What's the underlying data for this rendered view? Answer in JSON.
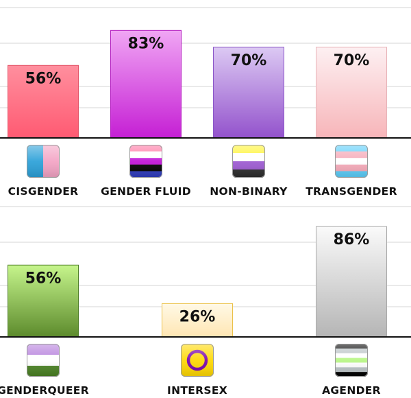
{
  "chart_data": [
    {
      "type": "bar",
      "categories": [
        "CISGENDER",
        "GENDER FLUID",
        "NON-BINARY",
        "TRANSGENDER"
      ],
      "values": [
        56,
        83,
        70,
        70
      ],
      "value_labels": [
        "56%",
        "83%",
        "70%",
        "70%"
      ],
      "ylim": [
        0,
        100
      ],
      "grid": true,
      "bar_colors": [
        [
          "#ff8f9e",
          "#ff5a72"
        ],
        [
          "#f0a6f4",
          "#c51fd4"
        ],
        [
          "#dcc9f3",
          "#9352cc"
        ],
        [
          "#fdf0f2",
          "#f7b5b9"
        ]
      ],
      "icons": [
        {
          "name": "cisgender-flag-icon",
          "stripes": "vertical",
          "colors": [
            "#2aa0d8",
            "#f3a3c4"
          ]
        },
        {
          "name": "gender-fluid-flag-icon",
          "stripes": "horizontal",
          "colors": [
            "#ff76a4",
            "#ffffff",
            "#c011d7",
            "#000000",
            "#2f3cbe"
          ]
        },
        {
          "name": "non-binary-flag-icon",
          "stripes": "horizontal",
          "colors": [
            "#fff430",
            "#ffffff",
            "#9c59d1",
            "#2c2c2c"
          ]
        },
        {
          "name": "transgender-flag-icon",
          "stripes": "horizontal",
          "colors": [
            "#5bcefa",
            "#f5a9b8",
            "#ffffff",
            "#f5a9b8",
            "#5bcefa"
          ]
        }
      ]
    },
    {
      "type": "bar",
      "categories": [
        "GENDERQUEER",
        "INTERSEX",
        "AGENDER"
      ],
      "values": [
        56,
        26,
        86
      ],
      "value_labels": [
        "56%",
        "26%",
        "86%"
      ],
      "ylim": [
        0,
        100
      ],
      "grid": true,
      "bar_colors": [
        [
          "#c6f58c",
          "#5c8a2c"
        ],
        [
          "#fff9e6",
          "#ffe6b3"
        ],
        [
          "#fafafa",
          "#b5b5b5"
        ]
      ],
      "icons": [
        {
          "name": "genderqueer-flag-icon",
          "stripes": "horizontal",
          "colors": [
            "#b57edc",
            "#ffffff",
            "#4a8123"
          ]
        },
        {
          "name": "intersex-flag-icon",
          "stripes": "ring",
          "colors": [
            "#ffd800",
            "#7902aa"
          ]
        },
        {
          "name": "agender-flag-icon",
          "stripes": "horizontal",
          "colors": [
            "#000000",
            "#bcc4c7",
            "#ffffff",
            "#b7f684",
            "#ffffff",
            "#bcc4c7",
            "#000000"
          ]
        }
      ]
    }
  ]
}
